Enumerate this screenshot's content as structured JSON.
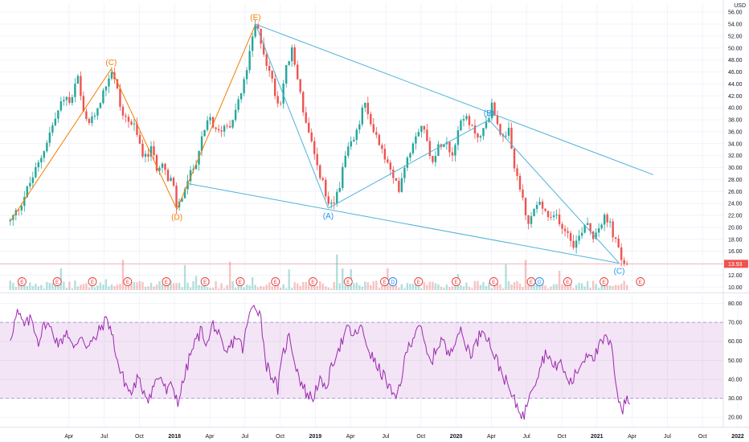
{
  "chart_data": [
    {
      "type": "candlestick",
      "currency": "USD",
      "y_ticks": [
        10,
        12,
        14,
        16,
        18,
        20,
        22,
        24,
        26,
        28,
        30,
        32,
        34,
        36,
        38,
        40,
        42,
        44,
        46,
        48,
        50,
        52,
        54,
        56
      ],
      "y_tick_labels": [
        "10.00",
        "12.00",
        "14.00",
        "16.00",
        "18.00",
        "20.00",
        "22.00",
        "24.00",
        "26.00",
        "28.00",
        "30.00",
        "32.00",
        "34.00",
        "36.00",
        "38.00",
        "40.00",
        "42.00",
        "44.00",
        "46.00",
        "48.00",
        "50.00",
        "52.00",
        "54.00",
        "56.00"
      ],
      "ylim": [
        9.5,
        57.5
      ],
      "last_price_label": "13.93",
      "x_tick_labels": [
        "Apr",
        "Jul",
        "Oct",
        "2018",
        "Apr",
        "Jul",
        "Oct",
        "2019",
        "Apr",
        "Jul",
        "Oct",
        "2020",
        "Apr",
        "Jul",
        "Oct",
        "2021",
        "Apr",
        "Jul",
        "Oct",
        "2022"
      ],
      "x_tick_months": [
        3,
        6,
        9,
        12,
        15,
        18,
        21,
        24,
        27,
        30,
        33,
        36,
        39,
        42,
        45,
        48,
        51,
        54,
        57,
        60
      ],
      "x_origin_label": "Jan 2017",
      "price_path": [
        [
          -2.0,
          21.0
        ],
        [
          -1.2,
          23.5
        ],
        [
          -0.3,
          27.5
        ],
        [
          0.5,
          31
        ],
        [
          1.3,
          35.5
        ],
        [
          2.0,
          39
        ],
        [
          2.6,
          42
        ],
        [
          3.2,
          40.5
        ],
        [
          3.7,
          45.5
        ],
        [
          4.3,
          38
        ],
        [
          4.9,
          37.5
        ],
        [
          5.5,
          40.5
        ],
        [
          6.1,
          43.5
        ],
        [
          6.6,
          46.5
        ],
        [
          7.0,
          44
        ],
        [
          7.5,
          39
        ],
        [
          8.0,
          38
        ],
        [
          8.5,
          37
        ],
        [
          9.0,
          34
        ],
        [
          9.5,
          31.5
        ],
        [
          10.0,
          33
        ],
        [
          10.5,
          30
        ],
        [
          11.0,
          31.5
        ],
        [
          11.4,
          27.5
        ],
        [
          11.8,
          28
        ],
        [
          12.2,
          23
        ],
        [
          12.7,
          25.5
        ],
        [
          13.2,
          28
        ],
        [
          13.8,
          31
        ],
        [
          14.4,
          35
        ],
        [
          15.0,
          38.5
        ],
        [
          15.6,
          35.5
        ],
        [
          16.2,
          37
        ],
        [
          16.8,
          37.5
        ],
        [
          17.3,
          40.5
        ],
        [
          17.8,
          43
        ],
        [
          18.3,
          48
        ],
        [
          18.9,
          54
        ],
        [
          19.4,
          51
        ],
        [
          19.9,
          47
        ],
        [
          20.4,
          44
        ],
        [
          20.9,
          40
        ],
        [
          21.5,
          46.5
        ],
        [
          22.0,
          49.5
        ],
        [
          22.6,
          44
        ],
        [
          23.1,
          38
        ],
        [
          23.6,
          34.5
        ],
        [
          24.1,
          30
        ],
        [
          24.6,
          28
        ],
        [
          25.1,
          23.2
        ],
        [
          25.6,
          24
        ],
        [
          26.1,
          27.5
        ],
        [
          26.6,
          32
        ],
        [
          27.1,
          34
        ],
        [
          27.6,
          36
        ],
        [
          28.1,
          41
        ],
        [
          28.6,
          38
        ],
        [
          29.1,
          36
        ],
        [
          29.6,
          33
        ],
        [
          30.1,
          31
        ],
        [
          30.6,
          28
        ],
        [
          31.1,
          26.5
        ],
        [
          31.6,
          30.5
        ],
        [
          32.1,
          33
        ],
        [
          32.6,
          36
        ],
        [
          33.1,
          37.5
        ],
        [
          33.6,
          33.5
        ],
        [
          34.1,
          31
        ],
        [
          34.6,
          34
        ],
        [
          35.1,
          35
        ],
        [
          35.6,
          32
        ],
        [
          36.1,
          36
        ],
        [
          36.6,
          39
        ],
        [
          37.1,
          37
        ],
        [
          37.6,
          36
        ],
        [
          38.1,
          35
        ],
        [
          38.6,
          38
        ],
        [
          39.1,
          40.5
        ],
        [
          39.6,
          37
        ],
        [
          40.1,
          34
        ],
        [
          40.5,
          36
        ],
        [
          40.9,
          30
        ],
        [
          41.3,
          28
        ],
        [
          41.7,
          24
        ],
        [
          42.1,
          20
        ],
        [
          42.6,
          23
        ],
        [
          43.1,
          24
        ],
        [
          43.6,
          22.5
        ],
        [
          44.1,
          21
        ],
        [
          44.6,
          22
        ],
        [
          45.1,
          20
        ],
        [
          45.6,
          19
        ],
        [
          46.1,
          17
        ],
        [
          46.6,
          19
        ],
        [
          47.1,
          21.5
        ],
        [
          47.6,
          18.5
        ],
        [
          48.1,
          20
        ],
        [
          48.6,
          21.5
        ],
        [
          49.1,
          20.5
        ],
        [
          49.6,
          17.5
        ],
        [
          50.1,
          14.5
        ],
        [
          50.6,
          13.9
        ]
      ],
      "wave_lines": [
        {
          "kind": "impulse",
          "points": [
            [
              -2.0,
              21.0
            ],
            [
              6.6,
              46.5
            ]
          ]
        },
        {
          "kind": "impulse",
          "points": [
            [
              6.6,
              46.5
            ],
            [
              12.2,
              23.0
            ]
          ]
        },
        {
          "kind": "impulse",
          "points": [
            [
              12.2,
              23.0
            ],
            [
              18.9,
              54.0
            ]
          ]
        },
        {
          "kind": "corrective",
          "points": [
            [
              18.9,
              54.0
            ],
            [
              25.1,
              23.2
            ]
          ]
        },
        {
          "kind": "corrective",
          "points": [
            [
              25.1,
              23.2
            ],
            [
              38.8,
              38.0
            ]
          ]
        },
        {
          "kind": "corrective",
          "points": [
            [
              38.8,
              38.0
            ],
            [
              49.9,
              14.0
            ]
          ]
        },
        {
          "kind": "trend",
          "points": [
            [
              18.9,
              54.0
            ],
            [
              52.8,
              28.8
            ]
          ]
        },
        {
          "kind": "trend",
          "points": [
            [
              13.2,
              27.3
            ],
            [
              49.9,
              14.0
            ]
          ]
        }
      ],
      "wave_labels": [
        {
          "text": "(C)",
          "x": 6.6,
          "y": 46.5,
          "color": "#f57c00",
          "position": "above"
        },
        {
          "text": "(D)",
          "x": 12.2,
          "y": 23.0,
          "color": "#f57c00",
          "position": "below"
        },
        {
          "text": "(E)",
          "x": 18.9,
          "y": 54.0,
          "color": "#f57c00",
          "position": "above"
        },
        {
          "text": "(A)",
          "x": 25.1,
          "y": 23.2,
          "color": "#2196f3",
          "position": "below"
        },
        {
          "text": "(B)",
          "x": 38.8,
          "y": 38.0,
          "color": "#2196f3",
          "position": "above"
        },
        {
          "text": "(C)",
          "x": 49.9,
          "y": 14.0,
          "color": "#2196f3",
          "position": "below"
        }
      ],
      "earnings_markers": [
        {
          "text": "E",
          "x": -1.0,
          "color": "#e53935"
        },
        {
          "text": "E",
          "x": 2.0,
          "color": "#e53935"
        },
        {
          "text": "E",
          "x": 5.0,
          "color": "#e53935"
        },
        {
          "text": "E",
          "x": 8.0,
          "color": "#e53935"
        },
        {
          "text": "E",
          "x": 11.3,
          "color": "#e53935"
        },
        {
          "text": "E",
          "x": 14.6,
          "color": "#e53935"
        },
        {
          "text": "E",
          "x": 17.6,
          "color": "#e53935"
        },
        {
          "text": "E",
          "x": 20.6,
          "color": "#e53935"
        },
        {
          "text": "E",
          "x": 23.8,
          "color": "#e53935"
        },
        {
          "text": "E",
          "x": 26.8,
          "color": "#e53935"
        },
        {
          "text": "E",
          "x": 29.9,
          "color": "#e53935"
        },
        {
          "text": "D",
          "x": 30.6,
          "color": "#1e88e5"
        },
        {
          "text": "E",
          "x": 32.8,
          "color": "#e53935"
        },
        {
          "text": "E",
          "x": 36.0,
          "color": "#e53935"
        },
        {
          "text": "E",
          "x": 39.2,
          "color": "#e53935"
        },
        {
          "text": "E",
          "x": 42.4,
          "color": "#e53935"
        },
        {
          "text": "D",
          "x": 43.1,
          "color": "#1e88e5"
        },
        {
          "text": "E",
          "x": 45.5,
          "color": "#e53935"
        },
        {
          "text": "E",
          "x": 48.6,
          "color": "#e53935"
        },
        {
          "text": "E",
          "x": 51.7,
          "color": "#e53935"
        }
      ]
    },
    {
      "type": "line",
      "indicator": "RSI",
      "y_ticks": [
        20,
        30,
        40,
        50,
        60,
        70,
        80
      ],
      "y_tick_labels": [
        "20.00",
        "30.00",
        "40.00",
        "50.00",
        "60.00",
        "70.00",
        "80.00"
      ],
      "ylim": [
        15,
        84
      ],
      "band": [
        30,
        70
      ],
      "rsi_path": [
        [
          -2.0,
          62
        ],
        [
          -1.4,
          75
        ],
        [
          -0.8,
          68
        ],
        [
          -0.2,
          72
        ],
        [
          0.4,
          60
        ],
        [
          1.0,
          70
        ],
        [
          1.6,
          65
        ],
        [
          2.2,
          58
        ],
        [
          2.8,
          66
        ],
        [
          3.4,
          55
        ],
        [
          4.0,
          64
        ],
        [
          4.6,
          57
        ],
        [
          5.2,
          61
        ],
        [
          5.8,
          68
        ],
        [
          6.3,
          72
        ],
        [
          6.8,
          60
        ],
        [
          7.3,
          45
        ],
        [
          7.8,
          38
        ],
        [
          8.3,
          32
        ],
        [
          8.8,
          40
        ],
        [
          9.3,
          35
        ],
        [
          9.8,
          30
        ],
        [
          10.3,
          38
        ],
        [
          10.8,
          42
        ],
        [
          11.3,
          33
        ],
        [
          11.8,
          37
        ],
        [
          12.3,
          28
        ],
        [
          12.8,
          40
        ],
        [
          13.3,
          52
        ],
        [
          13.8,
          60
        ],
        [
          14.3,
          66
        ],
        [
          14.8,
          58
        ],
        [
          15.3,
          70
        ],
        [
          15.8,
          62
        ],
        [
          16.3,
          52
        ],
        [
          16.8,
          58
        ],
        [
          17.3,
          63
        ],
        [
          17.8,
          56
        ],
        [
          18.3,
          72
        ],
        [
          18.8,
          80
        ],
        [
          19.3,
          75
        ],
        [
          19.8,
          48
        ],
        [
          20.3,
          42
        ],
        [
          20.8,
          35
        ],
        [
          21.3,
          55
        ],
        [
          21.8,
          63
        ],
        [
          22.3,
          48
        ],
        [
          22.8,
          38
        ],
        [
          23.3,
          32
        ],
        [
          23.8,
          30
        ],
        [
          24.3,
          40
        ],
        [
          24.8,
          34
        ],
        [
          25.3,
          44
        ],
        [
          25.8,
          55
        ],
        [
          26.3,
          60
        ],
        [
          26.8,
          67
        ],
        [
          27.3,
          62
        ],
        [
          27.8,
          68
        ],
        [
          28.3,
          60
        ],
        [
          28.8,
          52
        ],
        [
          29.3,
          46
        ],
        [
          29.8,
          42
        ],
        [
          30.3,
          36
        ],
        [
          30.8,
          28
        ],
        [
          31.3,
          40
        ],
        [
          31.8,
          55
        ],
        [
          32.3,
          62
        ],
        [
          32.8,
          70
        ],
        [
          33.3,
          58
        ],
        [
          33.8,
          48
        ],
        [
          34.3,
          56
        ],
        [
          34.8,
          62
        ],
        [
          35.3,
          52
        ],
        [
          35.8,
          60
        ],
        [
          36.3,
          66
        ],
        [
          36.8,
          58
        ],
        [
          37.3,
          54
        ],
        [
          37.8,
          60
        ],
        [
          38.3,
          68
        ],
        [
          38.8,
          60
        ],
        [
          39.3,
          52
        ],
        [
          39.8,
          45
        ],
        [
          40.3,
          38
        ],
        [
          40.8,
          30
        ],
        [
          41.3,
          25
        ],
        [
          41.8,
          20
        ],
        [
          42.3,
          35
        ],
        [
          42.8,
          40
        ],
        [
          43.3,
          50
        ],
        [
          43.8,
          55
        ],
        [
          44.3,
          45
        ],
        [
          44.8,
          50
        ],
        [
          45.3,
          42
        ],
        [
          45.8,
          38
        ],
        [
          46.3,
          44
        ],
        [
          46.8,
          50
        ],
        [
          47.3,
          55
        ],
        [
          47.8,
          52
        ],
        [
          48.3,
          58
        ],
        [
          48.8,
          62
        ],
        [
          49.3,
          55
        ],
        [
          49.6,
          40
        ],
        [
          49.9,
          28
        ],
        [
          50.2,
          24
        ],
        [
          50.5,
          30
        ],
        [
          50.8,
          27
        ]
      ]
    }
  ]
}
